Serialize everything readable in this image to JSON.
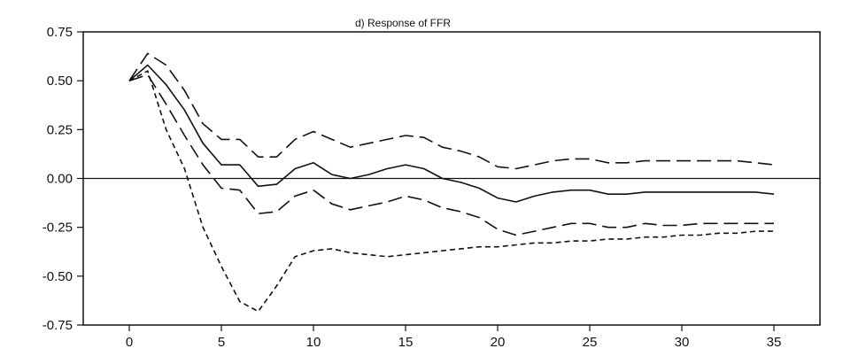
{
  "chart_data": {
    "type": "line",
    "title": "d) Response of FFR",
    "xlabel": "",
    "ylabel": "",
    "xlim": [
      -2.5,
      37.5
    ],
    "ylim": [
      -0.75,
      0.75
    ],
    "x_ticks": [
      0,
      5,
      10,
      15,
      20,
      25,
      30,
      35
    ],
    "x_tick_labels": [
      "0",
      "5",
      "10",
      "15",
      "20",
      "25",
      "30",
      "35"
    ],
    "y_ticks": [
      0.75,
      0.5,
      0.25,
      0.0,
      -0.25,
      -0.5,
      -0.75
    ],
    "y_tick_labels": [
      "0.75",
      "0.50",
      "0.25",
      "0.00",
      "-0.25",
      "-0.50",
      "-0.75"
    ],
    "grid": false,
    "zero_line": true,
    "legend": "none",
    "x": [
      0,
      1,
      2,
      3,
      4,
      5,
      6,
      7,
      8,
      9,
      10,
      11,
      12,
      13,
      14,
      15,
      16,
      17,
      18,
      19,
      20,
      21,
      22,
      23,
      24,
      25,
      26,
      27,
      28,
      29,
      30,
      31,
      32,
      33,
      34,
      35
    ],
    "series": [
      {
        "style": "solid",
        "color": "#111111",
        "values": [
          0.5,
          0.58,
          0.48,
          0.35,
          0.18,
          0.07,
          0.07,
          -0.04,
          -0.03,
          0.05,
          0.08,
          0.02,
          0.0,
          0.02,
          0.05,
          0.07,
          0.05,
          0.0,
          -0.02,
          -0.05,
          -0.1,
          -0.12,
          -0.09,
          -0.07,
          -0.06,
          -0.06,
          -0.08,
          -0.08,
          -0.07,
          -0.07,
          -0.07,
          -0.07,
          -0.07,
          -0.07,
          -0.07,
          -0.08
        ]
      },
      {
        "style": "long-dash",
        "color": "#111111",
        "values": [
          0.5,
          0.64,
          0.58,
          0.45,
          0.28,
          0.2,
          0.2,
          0.11,
          0.11,
          0.2,
          0.24,
          0.2,
          0.16,
          0.18,
          0.2,
          0.22,
          0.21,
          0.16,
          0.14,
          0.11,
          0.06,
          0.05,
          0.07,
          0.09,
          0.1,
          0.1,
          0.08,
          0.08,
          0.09,
          0.09,
          0.09,
          0.09,
          0.09,
          0.09,
          0.08,
          0.07
        ]
      },
      {
        "style": "long-dash",
        "color": "#111111",
        "values": [
          0.5,
          0.53,
          0.38,
          0.22,
          0.07,
          -0.05,
          -0.06,
          -0.18,
          -0.17,
          -0.09,
          -0.06,
          -0.13,
          -0.16,
          -0.14,
          -0.12,
          -0.09,
          -0.11,
          -0.15,
          -0.17,
          -0.2,
          -0.26,
          -0.29,
          -0.27,
          -0.25,
          -0.23,
          -0.23,
          -0.25,
          -0.25,
          -0.23,
          -0.24,
          -0.24,
          -0.23,
          -0.23,
          -0.23,
          -0.23,
          -0.23
        ]
      },
      {
        "style": "short-dash",
        "color": "#111111",
        "values": [
          0.5,
          0.55,
          0.25,
          0.05,
          -0.25,
          -0.45,
          -0.63,
          -0.68,
          -0.55,
          -0.4,
          -0.37,
          -0.36,
          -0.38,
          -0.39,
          -0.4,
          -0.39,
          -0.38,
          -0.37,
          -0.36,
          -0.35,
          -0.35,
          -0.34,
          -0.33,
          -0.33,
          -0.32,
          -0.32,
          -0.31,
          -0.31,
          -0.3,
          -0.3,
          -0.29,
          -0.29,
          -0.28,
          -0.28,
          -0.27,
          -0.27
        ]
      }
    ]
  }
}
